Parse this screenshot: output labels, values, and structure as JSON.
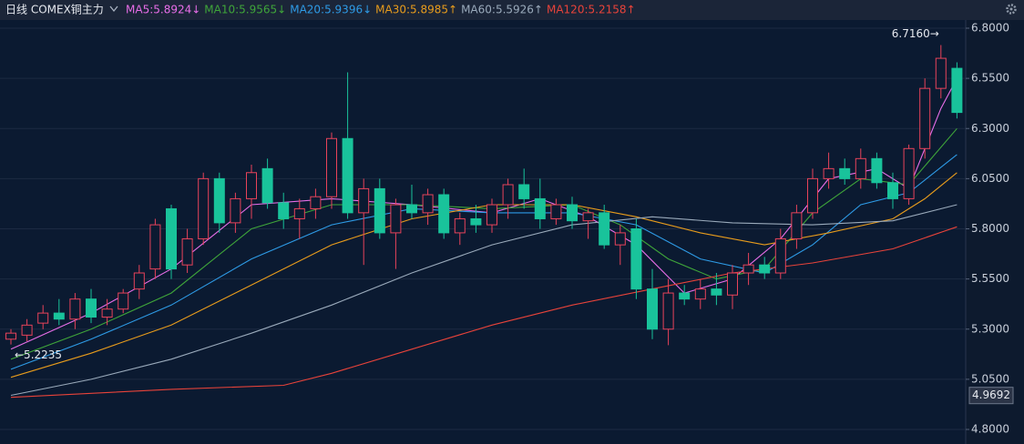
{
  "chart_data": {
    "type": "candlestick",
    "title": "日线 COMEX铜主力",
    "up_color": "#e8435a",
    "down_color": "#19c39b",
    "ohlc": [
      [
        5.25,
        5.3,
        5.2235,
        5.28
      ],
      [
        5.27,
        5.35,
        5.24,
        5.32
      ],
      [
        5.33,
        5.42,
        5.3,
        5.38
      ],
      [
        5.38,
        5.45,
        5.32,
        5.35
      ],
      [
        5.35,
        5.48,
        5.3,
        5.45
      ],
      [
        5.45,
        5.5,
        5.33,
        5.36
      ],
      [
        5.36,
        5.45,
        5.32,
        5.4
      ],
      [
        5.4,
        5.5,
        5.38,
        5.48
      ],
      [
        5.5,
        5.62,
        5.45,
        5.58
      ],
      [
        5.6,
        5.85,
        5.55,
        5.82
      ],
      [
        5.9,
        5.92,
        5.55,
        5.6
      ],
      [
        5.62,
        5.8,
        5.58,
        5.75
      ],
      [
        5.75,
        6.08,
        5.72,
        6.05
      ],
      [
        6.05,
        6.08,
        5.78,
        5.83
      ],
      [
        5.83,
        5.98,
        5.78,
        5.95
      ],
      [
        5.95,
        6.12,
        5.85,
        6.08
      ],
      [
        6.1,
        6.15,
        5.9,
        5.93
      ],
      [
        5.93,
        5.98,
        5.8,
        5.85
      ],
      [
        5.85,
        5.95,
        5.75,
        5.9
      ],
      [
        5.9,
        6.0,
        5.85,
        5.96
      ],
      [
        5.96,
        6.28,
        5.9,
        6.25
      ],
      [
        6.25,
        6.58,
        5.85,
        5.88
      ],
      [
        5.88,
        6.05,
        5.62,
        6.0
      ],
      [
        6.0,
        6.05,
        5.75,
        5.78
      ],
      [
        5.78,
        5.95,
        5.6,
        5.92
      ],
      [
        5.92,
        6.02,
        5.85,
        5.88
      ],
      [
        5.88,
        6.0,
        5.82,
        5.97
      ],
      [
        5.97,
        6.0,
        5.75,
        5.78
      ],
      [
        5.78,
        5.88,
        5.72,
        5.85
      ],
      [
        5.85,
        5.92,
        5.78,
        5.82
      ],
      [
        5.82,
        5.95,
        5.78,
        5.92
      ],
      [
        5.92,
        6.05,
        5.85,
        6.02
      ],
      [
        6.02,
        6.1,
        5.9,
        5.95
      ],
      [
        5.95,
        6.05,
        5.8,
        5.85
      ],
      [
        5.85,
        5.95,
        5.82,
        5.92
      ],
      [
        5.92,
        5.96,
        5.8,
        5.84
      ],
      [
        5.84,
        5.9,
        5.75,
        5.88
      ],
      [
        5.88,
        5.92,
        5.7,
        5.72
      ],
      [
        5.72,
        5.82,
        5.62,
        5.78
      ],
      [
        5.8,
        5.85,
        5.45,
        5.5
      ],
      [
        5.5,
        5.6,
        5.25,
        5.3
      ],
      [
        5.3,
        5.55,
        5.22,
        5.48
      ],
      [
        5.48,
        5.52,
        5.42,
        5.45
      ],
      [
        5.45,
        5.55,
        5.4,
        5.5
      ],
      [
        5.5,
        5.58,
        5.42,
        5.47
      ],
      [
        5.47,
        5.62,
        5.4,
        5.58
      ],
      [
        5.58,
        5.68,
        5.52,
        5.62
      ],
      [
        5.62,
        5.66,
        5.55,
        5.58
      ],
      [
        5.58,
        5.8,
        5.55,
        5.75
      ],
      [
        5.75,
        5.92,
        5.7,
        5.88
      ],
      [
        5.88,
        6.1,
        5.85,
        6.05
      ],
      [
        6.05,
        6.18,
        6.0,
        6.1
      ],
      [
        6.1,
        6.15,
        6.02,
        6.05
      ],
      [
        6.05,
        6.2,
        6.0,
        6.15
      ],
      [
        6.15,
        6.18,
        6.0,
        6.03
      ],
      [
        6.03,
        6.08,
        5.9,
        5.95
      ],
      [
        5.95,
        6.22,
        5.92,
        6.2
      ],
      [
        6.2,
        6.55,
        6.15,
        6.5
      ],
      [
        6.5,
        6.716,
        6.45,
        6.65
      ],
      [
        6.6,
        6.63,
        6.35,
        6.38
      ]
    ],
    "series": [
      {
        "name": "MA5:5.8924↓",
        "color": "#e86ee8",
        "x": [
          0,
          5,
          10,
          15,
          20,
          25,
          30,
          33,
          36,
          39,
          42,
          45,
          48,
          51,
          54,
          56,
          58,
          59
        ],
        "values": [
          5.2,
          5.38,
          5.6,
          5.92,
          5.95,
          5.92,
          5.88,
          5.95,
          5.86,
          5.72,
          5.48,
          5.55,
          5.75,
          6.05,
          6.1,
          6.0,
          6.4,
          6.55
        ]
      },
      {
        "name": "MA10:5.9565↓",
        "color": "#3fa53a",
        "x": [
          0,
          5,
          10,
          15,
          20,
          25,
          30,
          35,
          38,
          41,
          44,
          47,
          50,
          53,
          56,
          59
        ],
        "values": [
          5.15,
          5.3,
          5.48,
          5.8,
          5.92,
          5.92,
          5.9,
          5.92,
          5.82,
          5.65,
          5.55,
          5.6,
          5.88,
          6.05,
          6.02,
          6.3
        ]
      },
      {
        "name": "MA20:5.9396↓",
        "color": "#2e9be6",
        "x": [
          0,
          5,
          10,
          15,
          20,
          25,
          30,
          35,
          39,
          43,
          47,
          50,
          53,
          56,
          59
        ],
        "values": [
          5.1,
          5.25,
          5.42,
          5.65,
          5.82,
          5.9,
          5.88,
          5.88,
          5.82,
          5.65,
          5.58,
          5.72,
          5.92,
          5.98,
          6.17
        ]
      },
      {
        "name": "MA30:5.8985↑",
        "color": "#e89c1c",
        "x": [
          0,
          5,
          10,
          15,
          20,
          25,
          30,
          35,
          39,
          43,
          47,
          51,
          55,
          57,
          59
        ],
        "values": [
          5.06,
          5.18,
          5.32,
          5.52,
          5.72,
          5.85,
          5.92,
          5.92,
          5.86,
          5.78,
          5.72,
          5.78,
          5.85,
          5.95,
          6.08
        ]
      },
      {
        "name": "MA60:5.5926↑",
        "color": "#9aaabb",
        "x": [
          0,
          5,
          10,
          15,
          20,
          25,
          30,
          35,
          40,
          45,
          50,
          55,
          59
        ],
        "values": [
          4.97,
          5.05,
          5.15,
          5.28,
          5.42,
          5.58,
          5.72,
          5.82,
          5.86,
          5.83,
          5.82,
          5.84,
          5.92
        ]
      },
      {
        "name": "MA120:5.2158↑",
        "color": "#e8433a",
        "x": [
          0,
          10,
          17,
          20,
          25,
          30,
          35,
          40,
          45,
          50,
          55,
          59
        ],
        "values": [
          4.96,
          5.0,
          5.02,
          5.08,
          5.2,
          5.32,
          5.42,
          5.5,
          5.58,
          5.63,
          5.7,
          5.81
        ]
      }
    ],
    "annotations": [
      {
        "text": "6.7160→",
        "index": 58,
        "value": 6.716
      },
      {
        "text": "←5.2235",
        "index": 0,
        "value": 5.2235
      }
    ],
    "cursor_value": 4.9692,
    "ylim": [
      4.8,
      6.8
    ],
    "yticks": [
      {
        "value": 6.8,
        "label": "6.8000"
      },
      {
        "value": 6.55,
        "label": "6.5500"
      },
      {
        "value": 6.3,
        "label": "6.3000"
      },
      {
        "value": 6.05,
        "label": "6.0500"
      },
      {
        "value": 5.8,
        "label": "5.8000"
      },
      {
        "value": 5.55,
        "label": "5.5500"
      },
      {
        "value": 5.3,
        "label": "5.3000"
      },
      {
        "value": 5.05,
        "label": "5.0500"
      },
      {
        "value": 4.8,
        "label": "4.8000"
      }
    ],
    "grid": true
  }
}
